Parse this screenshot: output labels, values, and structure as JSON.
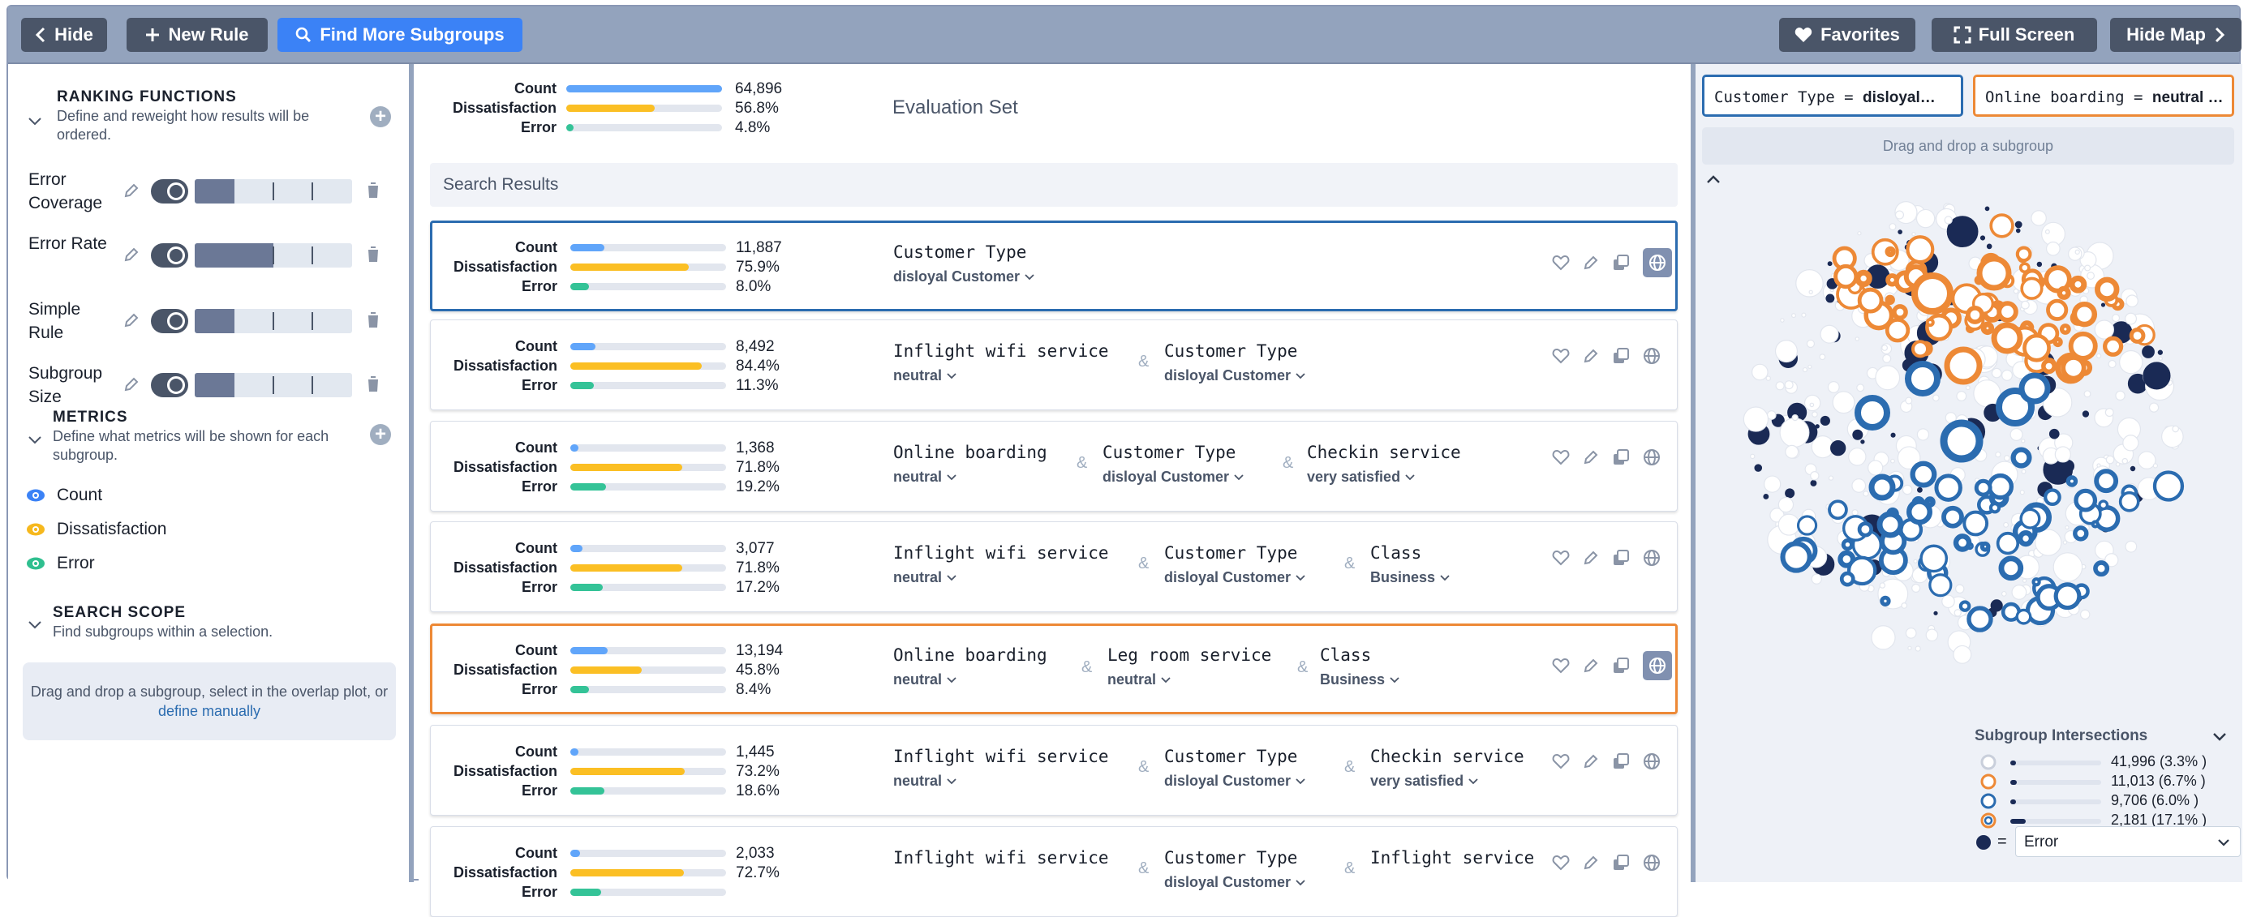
{
  "topbar": {
    "hide_label": "Hide",
    "new_rule_label": "New Rule",
    "find_more_label": "Find More Subgroups",
    "favorites_label": "Favorites",
    "full_screen_label": "Full Screen",
    "hide_map_label": "Hide Map"
  },
  "sidebar": {
    "ranking": {
      "title": "RANKING FUNCTIONS",
      "desc": "Define and reweight how results will be ordered.",
      "items": [
        {
          "name": "Error Coverage",
          "weight": 0.25
        },
        {
          "name": "Error Rate",
          "weight": 0.5
        },
        {
          "name": "Simple Rule",
          "weight": 0.25
        },
        {
          "name": "Subgroup Size",
          "weight": 0.25
        }
      ]
    },
    "metrics": {
      "title": "METRICS",
      "desc": "Define what metrics will be shown for each subgroup.",
      "items": [
        {
          "name": "Count",
          "color": "#3b82f6"
        },
        {
          "name": "Dissatisfaction",
          "color": "#f6b81d"
        },
        {
          "name": "Error",
          "color": "#2fbf8f"
        }
      ]
    },
    "scope": {
      "title": "SEARCH SCOPE",
      "desc": "Find subgroups within a selection.",
      "drop_text": "Drag and drop a subgroup, select in the overlap plot, or",
      "drop_link": "define manually"
    }
  },
  "colors": {
    "count": "#60a5fa",
    "dissatisfaction": "#fbbf24",
    "error": "#34c397",
    "blue_outline": "#2b6cb0",
    "orange_outline": "#ed8936"
  },
  "evaluation": {
    "label": "Evaluation Set",
    "count_label": "Count",
    "count": "64,896",
    "count_frac": 1.0,
    "dis_label": "Dissatisfaction",
    "dis": "56.8%",
    "dis_frac": 0.568,
    "err_label": "Error",
    "err": "4.8%",
    "err_frac": 0.048
  },
  "search_results_label": "Search Results",
  "results": [
    {
      "count": "11,887",
      "count_frac": 0.22,
      "dis": "75.9%",
      "dis_frac": 0.759,
      "err": "8.0%",
      "err_frac": 0.12,
      "highlight": "blue",
      "features": [
        {
          "name": "Customer Type",
          "value": "disloyal Customer"
        }
      ]
    },
    {
      "count": "8,492",
      "count_frac": 0.16,
      "dis": "84.4%",
      "dis_frac": 0.844,
      "err": "11.3%",
      "err_frac": 0.15,
      "highlight": "",
      "features": [
        {
          "name": "Inflight wifi service",
          "value": "neutral"
        },
        {
          "name": "Customer Type",
          "value": "disloyal Customer"
        }
      ]
    },
    {
      "count": "1,368",
      "count_frac": 0.05,
      "dis": "71.8%",
      "dis_frac": 0.718,
      "err": "19.2%",
      "err_frac": 0.23,
      "highlight": "",
      "features": [
        {
          "name": "Online boarding",
          "value": "neutral"
        },
        {
          "name": "Customer Type",
          "value": "disloyal Customer"
        },
        {
          "name": "Checkin service",
          "value": "very satisfied"
        }
      ]
    },
    {
      "count": "3,077",
      "count_frac": 0.08,
      "dis": "71.8%",
      "dis_frac": 0.718,
      "err": "17.2%",
      "err_frac": 0.21,
      "highlight": "",
      "features": [
        {
          "name": "Inflight wifi service",
          "value": "neutral"
        },
        {
          "name": "Customer Type",
          "value": "disloyal Customer"
        },
        {
          "name": "Class",
          "value": "Business"
        }
      ]
    },
    {
      "count": "13,194",
      "count_frac": 0.24,
      "dis": "45.8%",
      "dis_frac": 0.458,
      "err": "8.4%",
      "err_frac": 0.12,
      "highlight": "orange",
      "features": [
        {
          "name": "Online boarding",
          "value": "neutral"
        },
        {
          "name": "Leg room service",
          "value": "neutral"
        },
        {
          "name": "Class",
          "value": "Business"
        }
      ]
    },
    {
      "count": "1,445",
      "count_frac": 0.05,
      "dis": "73.2%",
      "dis_frac": 0.732,
      "err": "18.6%",
      "err_frac": 0.22,
      "highlight": "",
      "features": [
        {
          "name": "Inflight wifi service",
          "value": "neutral"
        },
        {
          "name": "Customer Type",
          "value": "disloyal Customer"
        },
        {
          "name": "Checkin service",
          "value": "very satisfied"
        }
      ]
    },
    {
      "count": "2,033",
      "count_frac": 0.06,
      "dis": "72.7%",
      "dis_frac": 0.727,
      "err": "",
      "err_frac": 0.2,
      "highlight": "",
      "features": [
        {
          "name": "Inflight wifi service",
          "value": ""
        },
        {
          "name": "Customer Type",
          "value": "disloyal Customer"
        },
        {
          "name": "Inflight service",
          "value": ""
        }
      ]
    }
  ],
  "map": {
    "chip1_key": "Customer Type = ",
    "chip1_val": "disloyal…",
    "chip2_key": "Online boarding = ",
    "chip2_val": "neutral …",
    "drop_label": "Drag and drop a subgroup",
    "intersections_title": "Subgroup Intersections",
    "legend": [
      {
        "text": "41,996 (3.3% )",
        "frac": 0.06,
        "kind": "none"
      },
      {
        "text": "11,013 (6.7% )",
        "frac": 0.07,
        "kind": "orange"
      },
      {
        "text": "9,706 (6.0% )",
        "frac": 0.06,
        "kind": "blue"
      },
      {
        "text": "2,181 (17.1% )",
        "frac": 0.17,
        "kind": "both"
      }
    ],
    "color_by_eq": "=",
    "color_by": "Error"
  }
}
